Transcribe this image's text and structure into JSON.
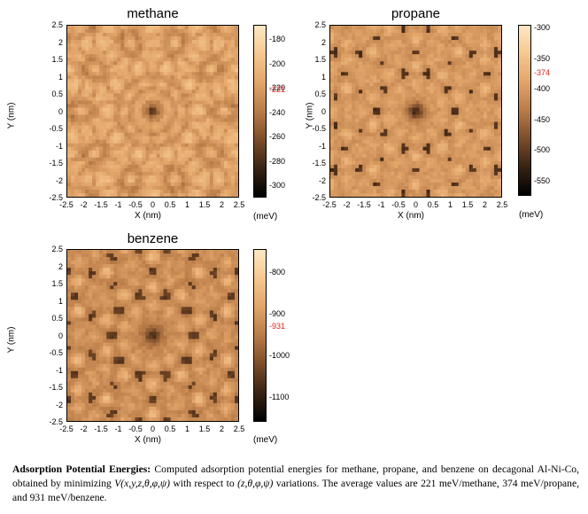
{
  "panels": [
    {
      "key": "methane",
      "title": "methane",
      "xlabel": "X (nm)",
      "ylabel": "Y (nm)",
      "unit": "(meV)",
      "x_ticks": [
        "-2.5",
        "-2",
        "-1.5",
        "-1",
        "-0.5",
        "0",
        "0.5",
        "1",
        "1.5",
        "2",
        "2.5"
      ],
      "y_ticks": [
        "2.5",
        "2",
        "1.5",
        "1",
        "0.5",
        "0",
        "-0.5",
        "-1",
        "-1.5",
        "-2",
        "-2.5"
      ],
      "cbar_ticks": [
        "-180",
        "-200",
        "-220",
        "-240",
        "-260",
        "-280",
        "-300"
      ],
      "cbar_range": [
        -310,
        -168
      ],
      "average_label": "-221",
      "average_value": -221
    },
    {
      "key": "propane",
      "title": "propane",
      "xlabel": "X (nm)",
      "ylabel": "Y (nm)",
      "unit": "(meV)",
      "x_ticks": [
        "-2.5",
        "-2",
        "-1.5",
        "-1",
        "-0.5",
        "0",
        "0.5",
        "1",
        "1.5",
        "2",
        "2.5"
      ],
      "y_ticks": [
        "2.5",
        "2",
        "1.5",
        "1",
        "0.5",
        "0",
        "-0.5",
        "-1",
        "-1.5",
        "-2",
        "-2.5"
      ],
      "cbar_ticks": [
        "-300",
        "-350",
        "-400",
        "-450",
        "-500",
        "-550"
      ],
      "cbar_range": [
        -575,
        -295
      ],
      "average_label": "-374",
      "average_value": -374
    },
    {
      "key": "benzene",
      "title": "benzene",
      "xlabel": "X (nm)",
      "ylabel": "Y (nm)",
      "unit": "(meV)",
      "x_ticks": [
        "-2.5",
        "-2",
        "-1.5",
        "-1",
        "-0.5",
        "0",
        "0.5",
        "1",
        "1.5",
        "2",
        "2.5"
      ],
      "y_ticks": [
        "2.5",
        "2",
        "1.5",
        "1",
        "0.5",
        "0",
        "-0.5",
        "-1",
        "-1.5",
        "-2",
        "-2.5"
      ],
      "cbar_ticks": [
        "-800",
        "-900",
        "-1000",
        "-1100"
      ],
      "cbar_range": [
        -1160,
        -745
      ],
      "average_label": "-931",
      "average_value": -931
    }
  ],
  "caption": {
    "bold_lead": "Adsorption Potential Energies:",
    "text_1": " Computed adsorption potential energies for methane, propane, and benzene on decagonal Al-Ni-Co, obtained by minimizing ",
    "math_1": "V(x,y,z,θ,φ,ψ)",
    "text_2": " with respect to ",
    "math_2": "(z,θ,φ,ψ)",
    "text_3": " variations. The average values are 221 meV/methane, 374 meV/propane, and 931 meV/benzene."
  },
  "colors": {
    "average_label": "#e0201a",
    "colormap": [
      "#000000",
      "#3a2414",
      "#7a4c2a",
      "#b97c48",
      "#e2a56a",
      "#f5c78e",
      "#fde7c4"
    ]
  }
}
